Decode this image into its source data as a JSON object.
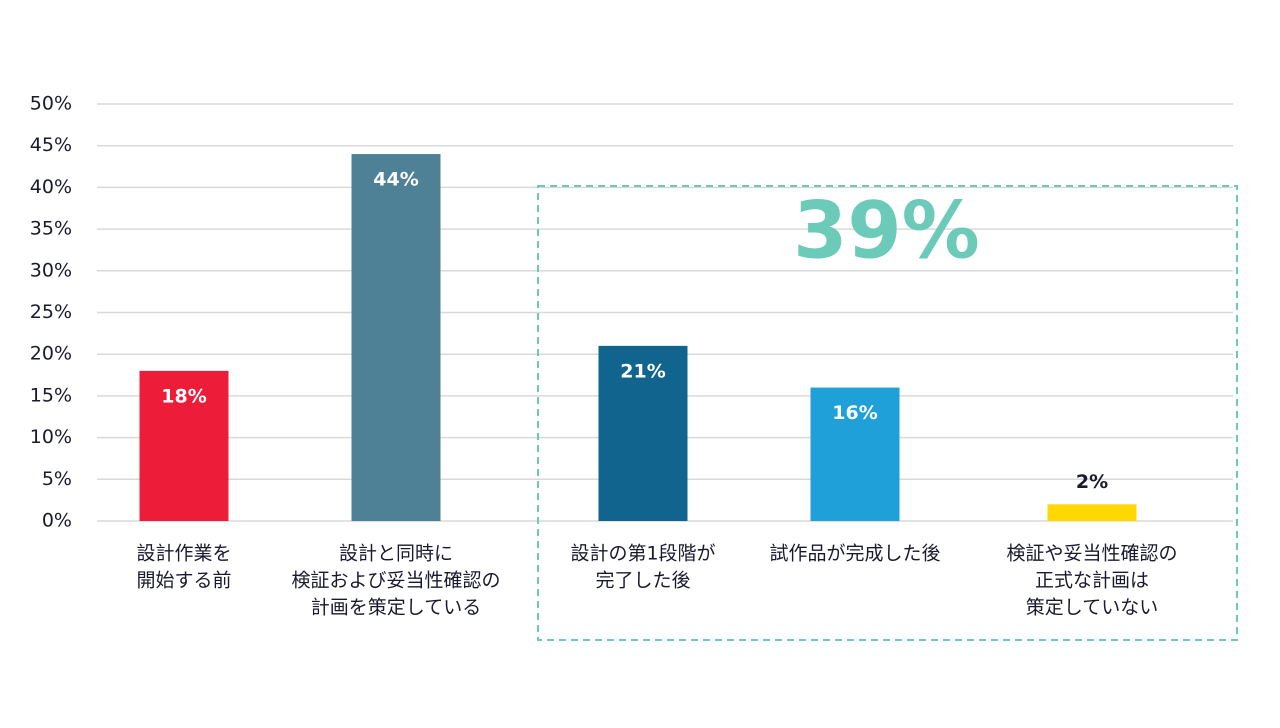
{
  "chart_data": {
    "type": "bar",
    "categories": [
      [
        "設計作業を",
        "開始する前"
      ],
      [
        "設計と同時に",
        "検証および妥当性確認の",
        "計画を策定している"
      ],
      [
        "設計の第1段階が",
        "完了した後"
      ],
      [
        "試作品が完成した後"
      ],
      [
        "検証や妥当性確認の",
        "正式な計画は",
        "策定していない"
      ]
    ],
    "values": [
      18,
      44,
      21,
      16,
      2
    ],
    "value_labels": [
      "18%",
      "44%",
      "21%",
      "16%",
      "2%"
    ],
    "colors": [
      "#ed1c38",
      "#4f8196",
      "#11648e",
      "#1fa0d9",
      "#fed800"
    ],
    "ylim": [
      0,
      50
    ],
    "yticks": [
      {
        "value": 0,
        "label": "0%"
      },
      {
        "value": 5,
        "label": "5%"
      },
      {
        "value": 10,
        "label": "10%"
      },
      {
        "value": 15,
        "label": "15%"
      },
      {
        "value": 20,
        "label": "20%"
      },
      {
        "value": 25,
        "label": "25%"
      },
      {
        "value": 30,
        "label": "30%"
      },
      {
        "value": 35,
        "label": "35%"
      },
      {
        "value": 40,
        "label": "40%"
      },
      {
        "value": 45,
        "label": "45%"
      },
      {
        "value": 50,
        "label": "50%"
      }
    ],
    "grid": true,
    "highlight": {
      "label": "39%",
      "start": 2,
      "end": 4,
      "color": "#6ccab9"
    }
  }
}
